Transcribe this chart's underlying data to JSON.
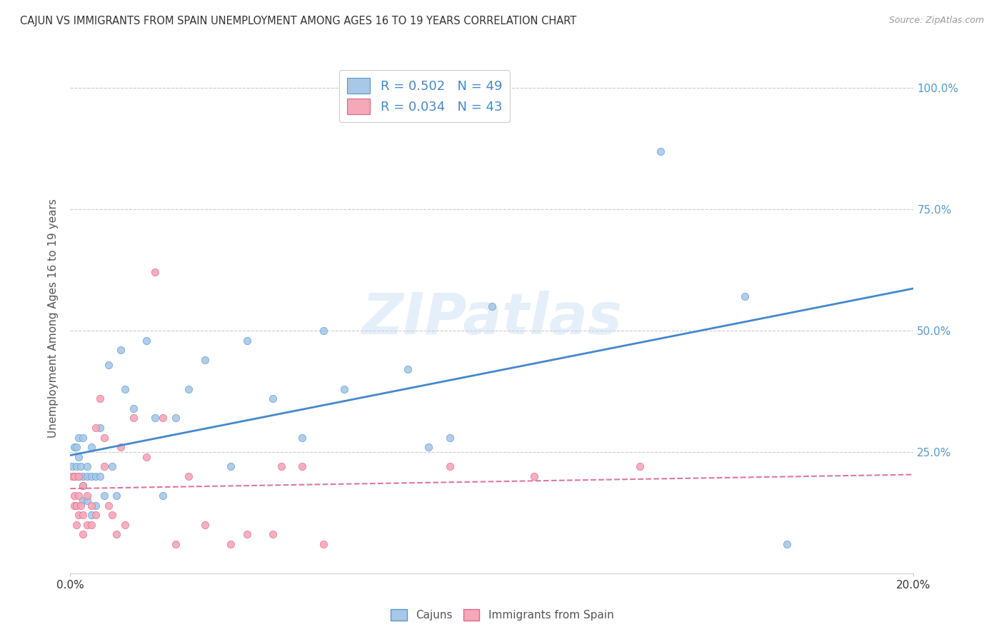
{
  "title": "CAJUN VS IMMIGRANTS FROM SPAIN UNEMPLOYMENT AMONG AGES 16 TO 19 YEARS CORRELATION CHART",
  "source": "Source: ZipAtlas.com",
  "ylabel": "Unemployment Among Ages 16 to 19 years",
  "xlim": [
    0.0,
    0.2
  ],
  "ylim": [
    0.0,
    1.05
  ],
  "ytick_vals": [
    0.25,
    0.5,
    0.75,
    1.0
  ],
  "ytick_labels": [
    "25.0%",
    "50.0%",
    "75.0%",
    "100.0%"
  ],
  "cajun_color": "#a8c8e8",
  "spain_color": "#f4a8b8",
  "cajun_edge_color": "#5599cc",
  "spain_edge_color": "#dd6688",
  "cajun_line_color": "#4488cc",
  "spain_line_color": "#dd7799",
  "right_axis_color": "#5599cc",
  "cajun_R": 0.502,
  "cajun_N": 49,
  "spain_R": 0.034,
  "spain_N": 43,
  "background_color": "#ffffff",
  "grid_color": "#cccccc",
  "watermark_text": "ZIPatlas",
  "cajun_x": [
    0.0005,
    0.001,
    0.001,
    0.0015,
    0.0015,
    0.002,
    0.002,
    0.002,
    0.0025,
    0.003,
    0.003,
    0.003,
    0.003,
    0.004,
    0.004,
    0.004,
    0.005,
    0.005,
    0.005,
    0.006,
    0.006,
    0.007,
    0.007,
    0.008,
    0.009,
    0.01,
    0.011,
    0.012,
    0.013,
    0.015,
    0.018,
    0.02,
    0.022,
    0.025,
    0.028,
    0.032,
    0.038,
    0.042,
    0.048,
    0.055,
    0.06,
    0.065,
    0.08,
    0.085,
    0.09,
    0.1,
    0.14,
    0.16,
    0.17
  ],
  "cajun_y": [
    0.22,
    0.2,
    0.26,
    0.22,
    0.26,
    0.2,
    0.24,
    0.28,
    0.22,
    0.15,
    0.18,
    0.2,
    0.28,
    0.15,
    0.2,
    0.22,
    0.12,
    0.2,
    0.26,
    0.14,
    0.2,
    0.2,
    0.3,
    0.16,
    0.43,
    0.22,
    0.16,
    0.46,
    0.38,
    0.34,
    0.48,
    0.32,
    0.16,
    0.32,
    0.38,
    0.44,
    0.22,
    0.48,
    0.36,
    0.28,
    0.5,
    0.38,
    0.42,
    0.26,
    0.28,
    0.55,
    0.87,
    0.57,
    0.06
  ],
  "spain_x": [
    0.0005,
    0.001,
    0.001,
    0.001,
    0.0015,
    0.0015,
    0.002,
    0.002,
    0.002,
    0.0025,
    0.003,
    0.003,
    0.003,
    0.004,
    0.004,
    0.005,
    0.005,
    0.006,
    0.006,
    0.007,
    0.008,
    0.008,
    0.009,
    0.01,
    0.011,
    0.012,
    0.013,
    0.015,
    0.018,
    0.02,
    0.022,
    0.025,
    0.028,
    0.032,
    0.038,
    0.042,
    0.048,
    0.05,
    0.055,
    0.06,
    0.09,
    0.11,
    0.135
  ],
  "spain_y": [
    0.2,
    0.14,
    0.16,
    0.2,
    0.1,
    0.14,
    0.12,
    0.16,
    0.2,
    0.14,
    0.08,
    0.12,
    0.18,
    0.1,
    0.16,
    0.1,
    0.14,
    0.12,
    0.3,
    0.36,
    0.22,
    0.28,
    0.14,
    0.12,
    0.08,
    0.26,
    0.1,
    0.32,
    0.24,
    0.62,
    0.32,
    0.06,
    0.2,
    0.1,
    0.06,
    0.08,
    0.08,
    0.22,
    0.22,
    0.06,
    0.22,
    0.2,
    0.22
  ]
}
